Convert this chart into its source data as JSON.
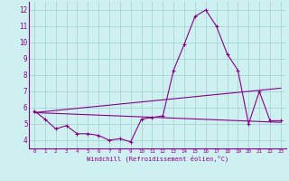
{
  "xlabel": "Windchill (Refroidissement éolien,°C)",
  "bg_color": "#cff0f0",
  "grid_color": "#aad8d8",
  "line_color": "#880088",
  "spine_color": "#880088",
  "xlim": [
    -0.5,
    23.5
  ],
  "ylim": [
    3.5,
    12.5
  ],
  "xticks": [
    0,
    1,
    2,
    3,
    4,
    5,
    6,
    7,
    8,
    9,
    10,
    11,
    12,
    13,
    14,
    15,
    16,
    17,
    18,
    19,
    20,
    21,
    22,
    23
  ],
  "yticks": [
    4,
    5,
    6,
    7,
    8,
    9,
    10,
    11,
    12
  ],
  "series1_x": [
    0,
    1,
    2,
    3,
    4,
    5,
    6,
    7,
    8,
    9,
    10,
    11,
    12,
    13,
    14,
    15,
    16,
    17,
    18,
    19,
    20,
    21,
    22,
    23
  ],
  "series1_y": [
    5.8,
    5.3,
    4.7,
    4.9,
    4.4,
    4.4,
    4.3,
    4.0,
    4.1,
    3.9,
    5.3,
    5.4,
    5.5,
    8.3,
    9.9,
    11.6,
    12.0,
    11.0,
    9.3,
    8.3,
    5.0,
    7.0,
    5.2,
    5.2
  ],
  "series2_x": [
    0,
    23
  ],
  "series2_y": [
    5.7,
    5.1
  ],
  "series3_x": [
    0,
    23
  ],
  "series3_y": [
    5.7,
    7.2
  ],
  "xlabel_fontsize": 5.0,
  "tick_fontsize_x": 4.2,
  "tick_fontsize_y": 5.5
}
